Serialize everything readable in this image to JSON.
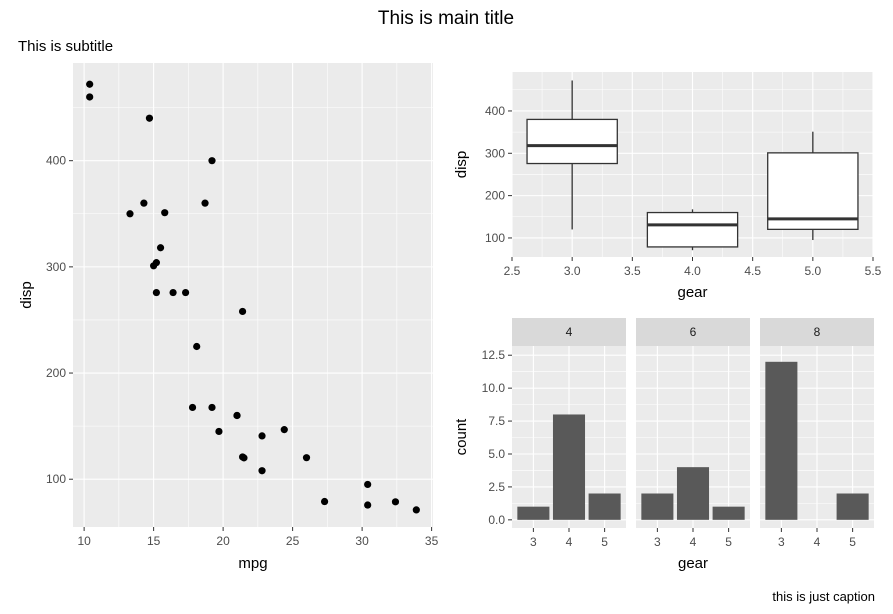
{
  "figure": {
    "title": "This is main title",
    "subtitle": "This is subtitle",
    "caption": "this is just caption"
  },
  "chart_data": [
    {
      "type": "scatter",
      "xlabel": "mpg",
      "ylabel": "disp",
      "xlim": [
        9.2,
        35.1
      ],
      "ylim": [
        55,
        492
      ],
      "xticks": [
        10,
        15,
        20,
        25,
        30,
        35
      ],
      "yticks": [
        100,
        200,
        300,
        400
      ],
      "grid": true,
      "points": [
        [
          21.0,
          160
        ],
        [
          21.0,
          160
        ],
        [
          22.8,
          108
        ],
        [
          21.4,
          258
        ],
        [
          18.7,
          360
        ],
        [
          18.1,
          225
        ],
        [
          14.3,
          360
        ],
        [
          24.4,
          146.7
        ],
        [
          22.8,
          140.8
        ],
        [
          19.2,
          167.6
        ],
        [
          17.8,
          167.6
        ],
        [
          16.4,
          275.8
        ],
        [
          17.3,
          275.8
        ],
        [
          15.2,
          275.8
        ],
        [
          10.4,
          472
        ],
        [
          10.4,
          460
        ],
        [
          14.7,
          440
        ],
        [
          32.4,
          78.7
        ],
        [
          30.4,
          75.7
        ],
        [
          33.9,
          71.1
        ],
        [
          21.5,
          120.1
        ],
        [
          15.5,
          318
        ],
        [
          15.2,
          304
        ],
        [
          13.3,
          350
        ],
        [
          19.2,
          400
        ],
        [
          27.3,
          79
        ],
        [
          26.0,
          120.3
        ],
        [
          30.4,
          95.1
        ],
        [
          15.8,
          351
        ],
        [
          19.7,
          145
        ],
        [
          15.0,
          301
        ],
        [
          21.4,
          121
        ]
      ]
    },
    {
      "type": "boxplot",
      "xlabel": "gear",
      "ylabel": "disp",
      "xlim": [
        2.5,
        5.5
      ],
      "ylim": [
        55,
        492
      ],
      "xticks": [
        2.5,
        3.0,
        3.5,
        4.0,
        4.5,
        5.0,
        5.5
      ],
      "yticks": [
        100,
        200,
        300,
        400
      ],
      "grid": true,
      "boxes": [
        {
          "x": 3,
          "min": 120.1,
          "q1": 275.8,
          "median": 318,
          "q3": 380,
          "max": 472
        },
        {
          "x": 4,
          "min": 71.1,
          "q1": 78.8,
          "median": 130.9,
          "q3": 160,
          "max": 167.6
        },
        {
          "x": 5,
          "min": 95.1,
          "q1": 120.3,
          "median": 145,
          "q3": 301,
          "max": 351
        }
      ]
    },
    {
      "type": "bar",
      "xlabel": "gear",
      "ylabel": "count",
      "ylim": [
        -0.62,
        13.2
      ],
      "yticks": [
        0.0,
        2.5,
        5.0,
        7.5,
        10.0,
        12.5
      ],
      "ytick_labels": [
        "0.0",
        "2.5",
        "5.0",
        "7.5",
        "10.0",
        "12.5"
      ],
      "categories": [
        "3",
        "4",
        "5"
      ],
      "grid": true,
      "facets": [
        {
          "label": "4",
          "values": [
            1,
            8,
            2
          ]
        },
        {
          "label": "6",
          "values": [
            2,
            4,
            1
          ]
        },
        {
          "label": "8",
          "values": [
            12,
            0,
            2
          ]
        }
      ]
    }
  ]
}
